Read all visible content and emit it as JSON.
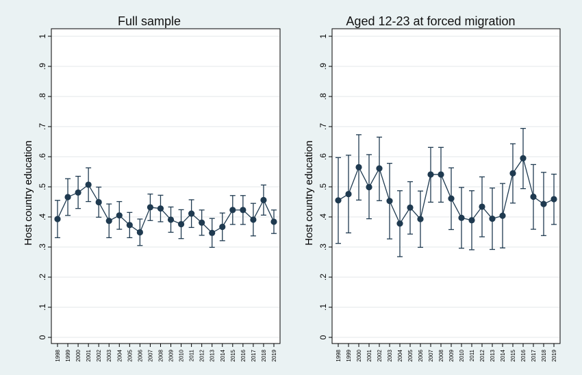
{
  "chart_data": [
    {
      "type": "line",
      "title": "Full sample",
      "ylabel": "Host country education",
      "xlabel": "",
      "ylim": [
        0,
        1
      ],
      "yticks": [
        "0",
        ".1",
        ".2",
        ".3",
        ".4",
        ".5",
        ".6",
        ".7",
        ".8",
        ".9",
        "1"
      ],
      "grid": true,
      "x": [
        "1998",
        "1999",
        "2000",
        "2001",
        "2002",
        "2003",
        "2004",
        "2005",
        "2006",
        "2007",
        "2008",
        "2009",
        "2010",
        "2011",
        "2012",
        "2013",
        "2014",
        "2015",
        "2016",
        "2017",
        "2018",
        "2019"
      ],
      "series": [
        {
          "values": [
            0.393,
            0.466,
            0.481,
            0.507,
            0.449,
            0.387,
            0.405,
            0.373,
            0.349,
            0.432,
            0.428,
            0.391,
            0.376,
            0.411,
            0.381,
            0.347,
            0.367,
            0.423,
            0.423,
            0.391,
            0.456,
            0.384
          ],
          "ci_low": [
            0.331,
            0.405,
            0.428,
            0.451,
            0.399,
            0.331,
            0.359,
            0.331,
            0.305,
            0.388,
            0.384,
            0.349,
            0.328,
            0.365,
            0.339,
            0.299,
            0.321,
            0.375,
            0.375,
            0.337,
            0.406,
            0.345
          ],
          "ci_high": [
            0.455,
            0.527,
            0.535,
            0.563,
            0.499,
            0.443,
            0.451,
            0.415,
            0.393,
            0.476,
            0.472,
            0.433,
            0.424,
            0.457,
            0.423,
            0.395,
            0.413,
            0.471,
            0.471,
            0.445,
            0.506,
            0.423
          ]
        }
      ]
    },
    {
      "type": "line",
      "title": "Aged 12-23 at forced migration",
      "ylabel": "Host country education",
      "xlabel": "",
      "ylim": [
        0,
        1
      ],
      "yticks": [
        "0",
        ".1",
        ".2",
        ".3",
        ".4",
        ".5",
        ".6",
        ".7",
        ".8",
        ".9",
        "1"
      ],
      "grid": true,
      "x": [
        "1998",
        "1999",
        "2000",
        "2001",
        "2002",
        "2003",
        "2004",
        "2005",
        "2006",
        "2007",
        "2008",
        "2009",
        "2010",
        "2011",
        "2012",
        "2013",
        "2014",
        "2015",
        "2016",
        "2017",
        "2018",
        "2019"
      ],
      "series": [
        {
          "values": [
            0.455,
            0.476,
            0.565,
            0.499,
            0.561,
            0.453,
            0.378,
            0.431,
            0.393,
            0.541,
            0.541,
            0.461,
            0.397,
            0.389,
            0.434,
            0.394,
            0.404,
            0.545,
            0.595,
            0.467,
            0.443,
            0.459
          ],
          "ci_low": [
            0.312,
            0.347,
            0.456,
            0.394,
            0.454,
            0.327,
            0.268,
            0.343,
            0.299,
            0.449,
            0.449,
            0.358,
            0.296,
            0.291,
            0.334,
            0.292,
            0.297,
            0.446,
            0.494,
            0.359,
            0.338,
            0.375
          ],
          "ci_high": [
            0.597,
            0.605,
            0.673,
            0.607,
            0.665,
            0.578,
            0.487,
            0.517,
            0.486,
            0.631,
            0.631,
            0.563,
            0.498,
            0.487,
            0.533,
            0.496,
            0.511,
            0.643,
            0.694,
            0.574,
            0.548,
            0.542
          ]
        }
      ]
    }
  ]
}
